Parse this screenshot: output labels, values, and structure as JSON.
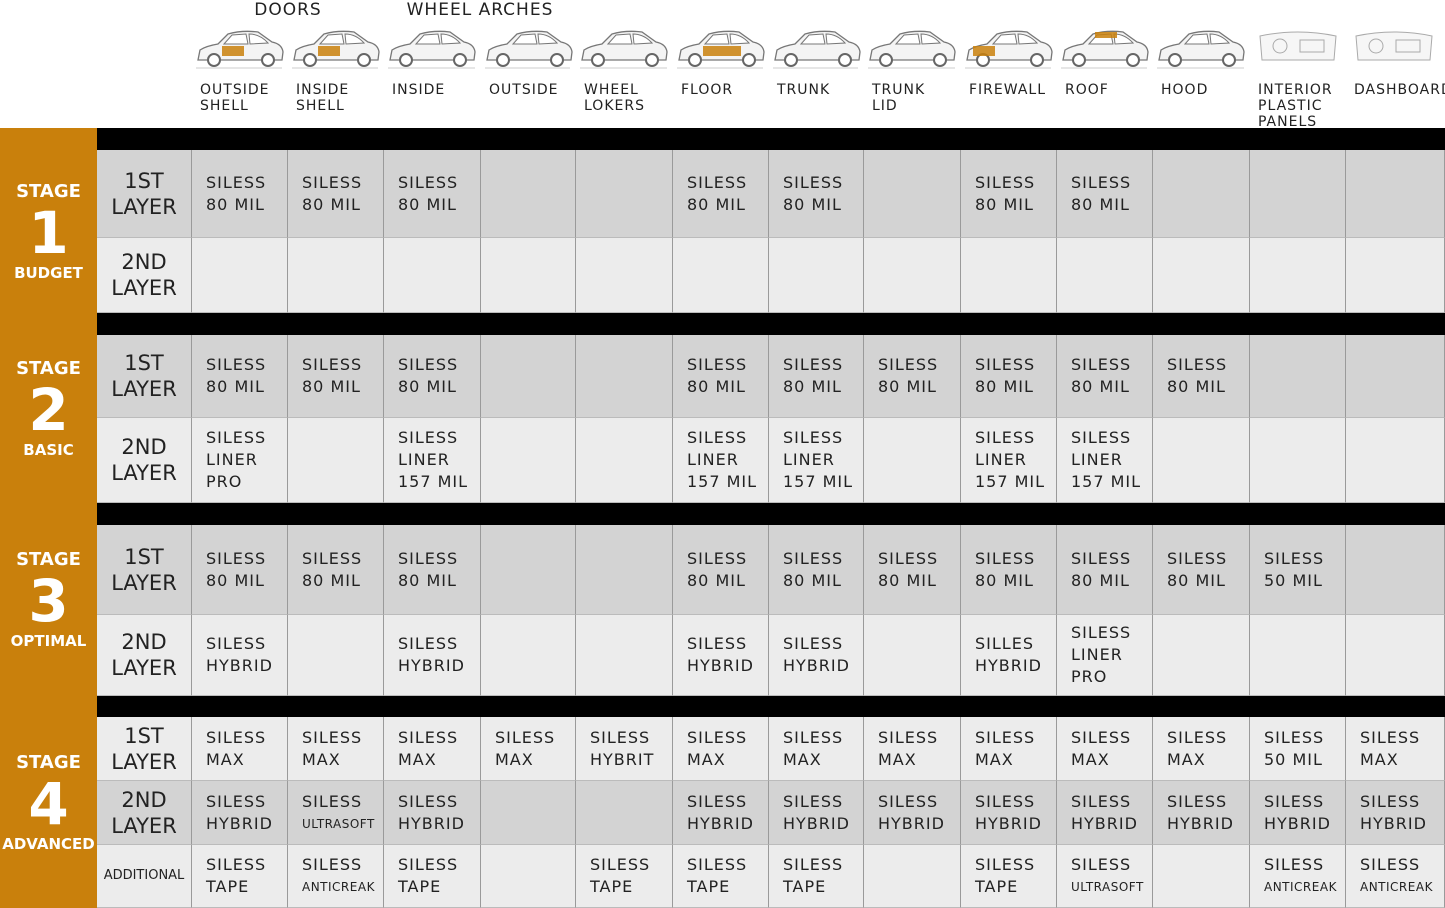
{
  "header": {
    "groups": [
      {
        "label": "DOORS",
        "span": 2
      },
      {
        "label": "WHEEL ARCHES",
        "span": 2
      }
    ],
    "columns": [
      [
        "OUTSIDE",
        "SHELL"
      ],
      [
        "INSIDE",
        "SHELL"
      ],
      [
        "INSIDE"
      ],
      [
        "OUTSIDE"
      ],
      [
        "WHEEL",
        "LOKERS"
      ],
      [
        "FLOOR"
      ],
      [
        "TRUNK"
      ],
      [
        "TRUNK",
        "LID"
      ],
      [
        "FIREWALL"
      ],
      [
        "ROOF"
      ],
      [
        "HOOD"
      ],
      [
        "INTERIOR",
        "PLASTIC",
        "PANELS"
      ],
      [
        "DASHBOARD"
      ]
    ]
  },
  "stages": [
    {
      "label": "STAGE",
      "number": "1",
      "name": "BUDGET",
      "rows": [
        {
          "label": [
            "1ST",
            "LAYER"
          ],
          "cells": [
            [
              "SILESS",
              "80 MIL"
            ],
            [
              "SILESS",
              "80 MIL"
            ],
            [
              "SILESS",
              "80 MIL"
            ],
            null,
            null,
            [
              "SILESS",
              "80 MIL"
            ],
            [
              "SILESS",
              "80 MIL"
            ],
            null,
            [
              "SILESS",
              "80 MIL"
            ],
            [
              "SILESS",
              "80 MIL"
            ],
            null,
            null,
            null
          ]
        },
        {
          "label": [
            "2ND",
            "LAYER"
          ],
          "cells": [
            null,
            null,
            null,
            null,
            null,
            null,
            null,
            null,
            null,
            null,
            null,
            null,
            null
          ]
        }
      ]
    },
    {
      "label": "STAGE",
      "number": "2",
      "name": "BASIC",
      "rows": [
        {
          "label": [
            "1ST",
            "LAYER"
          ],
          "cells": [
            [
              "SILESS",
              "80 MIL"
            ],
            [
              "SILESS",
              "80 MIL"
            ],
            [
              "SILESS",
              "80 MIL"
            ],
            null,
            null,
            [
              "SILESS",
              "80 MIL"
            ],
            [
              "SILESS",
              "80 MIL"
            ],
            [
              "SILESS",
              "80 MIL"
            ],
            [
              "SILESS",
              "80 MIL"
            ],
            [
              "SILESS",
              "80 MIL"
            ],
            [
              "SILESS",
              "80 MIL"
            ],
            null,
            null
          ]
        },
        {
          "label": [
            "2ND",
            "LAYER"
          ],
          "cells": [
            [
              "SILESS",
              "LINER",
              "PRO"
            ],
            null,
            [
              "SILESS",
              "LINER",
              "157 MIL"
            ],
            null,
            null,
            [
              "SILESS",
              "LINER",
              "157 MIL"
            ],
            [
              "SILESS",
              "LINER",
              "157 MIL"
            ],
            null,
            [
              "SILESS",
              "LINER",
              "157 MIL"
            ],
            [
              "SILESS",
              "LINER",
              "157 MIL"
            ],
            null,
            null,
            null
          ]
        }
      ]
    },
    {
      "label": "STAGE",
      "number": "3",
      "name": "OPTIMAL",
      "rows": [
        {
          "label": [
            "1ST",
            "LAYER"
          ],
          "cells": [
            [
              "SILESS",
              "80 MIL"
            ],
            [
              "SILESS",
              "80 MIL"
            ],
            [
              "SILESS",
              "80 MIL"
            ],
            null,
            null,
            [
              "SILESS",
              "80 MIL"
            ],
            [
              "SILESS",
              "80 MIL"
            ],
            [
              "SILESS",
              "80 MIL"
            ],
            [
              "SILESS",
              "80 MIL"
            ],
            [
              "SILESS",
              "80 MIL"
            ],
            [
              "SILESS",
              "80 MIL"
            ],
            [
              "SILESS",
              "50 MIL"
            ],
            null
          ]
        },
        {
          "label": [
            "2ND",
            "LAYER"
          ],
          "cells": [
            [
              "SILESS",
              "HYBRID"
            ],
            null,
            [
              "SILESS",
              "HYBRID"
            ],
            null,
            null,
            [
              "SILESS",
              "HYBRID"
            ],
            [
              "SILESS",
              "HYBRID"
            ],
            null,
            [
              "SILLES",
              "HYBRID"
            ],
            [
              "SILESS",
              "LINER",
              "PRO"
            ],
            null,
            null,
            null
          ]
        }
      ]
    },
    {
      "label": "STAGE",
      "number": "4",
      "name": "ADVANCED",
      "rows": [
        {
          "label": [
            "1ST",
            "LAYER"
          ],
          "cells": [
            [
              "SILESS",
              "MAX"
            ],
            [
              "SILESS",
              "MAX"
            ],
            [
              "SILESS",
              "MAX"
            ],
            [
              "SILESS",
              "MAX"
            ],
            [
              "SILESS",
              "HYBRIT"
            ],
            [
              "SILESS",
              "MAX"
            ],
            [
              "SILESS",
              "MAX"
            ],
            [
              "SILESS",
              "MAX"
            ],
            [
              "SILESS",
              "MAX"
            ],
            [
              "SILESS",
              "MAX"
            ],
            [
              "SILESS",
              "MAX"
            ],
            [
              "SILESS",
              "50 MIL"
            ],
            [
              "SILESS",
              "MAX"
            ]
          ]
        },
        {
          "label": [
            "2ND",
            "LAYER"
          ],
          "cells": [
            [
              "SILESS",
              "HYBRID"
            ],
            [
              "SILESS",
              "ULTRASOFT"
            ],
            [
              "SILESS",
              "HYBRID"
            ],
            null,
            null,
            [
              "SILESS",
              "HYBRID"
            ],
            [
              "SILESS",
              "HYBRID"
            ],
            [
              "SILESS",
              "HYBRID"
            ],
            [
              "SILESS",
              "HYBRID"
            ],
            [
              "SILESS",
              "HYBRID"
            ],
            [
              "SILESS",
              "HYBRID"
            ],
            [
              "SILESS",
              "HYBRID"
            ],
            [
              "SILESS",
              "HYBRID"
            ]
          ]
        },
        {
          "label": [
            "ADDITIONAL"
          ],
          "cells": [
            [
              "SILESS",
              "TAPE"
            ],
            [
              "SILESS",
              "ANTICREAK"
            ],
            [
              "SILESS",
              "TAPE"
            ],
            null,
            [
              "SILESS",
              "TAPE"
            ],
            [
              "SILESS",
              "TAPE"
            ],
            [
              "SILESS",
              "TAPE"
            ],
            null,
            [
              "SILESS",
              "TAPE"
            ],
            [
              "SILESS",
              "ULTRASOFT"
            ],
            null,
            [
              "SILESS",
              "ANTICREAK"
            ],
            [
              "SILESS",
              "ANTICREAK"
            ]
          ]
        }
      ]
    }
  ]
}
